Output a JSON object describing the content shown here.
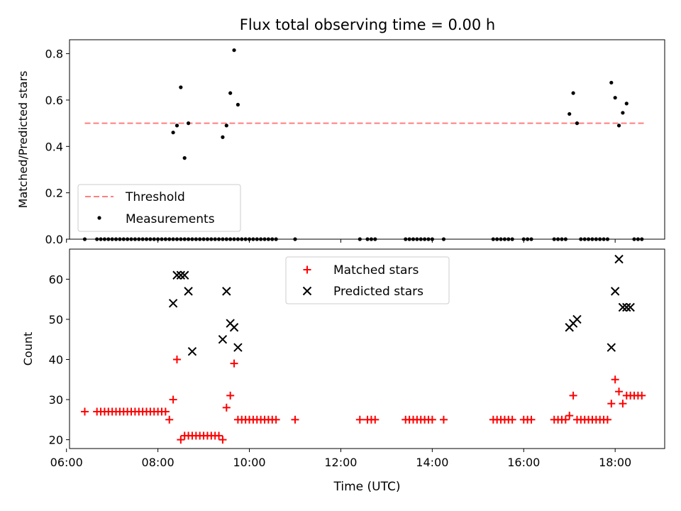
{
  "figure": {
    "title": "Flux total observing time = 0.00 h"
  },
  "colors": {
    "threshold": "#ff7f7f",
    "measurements": "#000000",
    "matched": "#ff0000",
    "predicted": "#000000"
  },
  "chart_data": [
    {
      "type": "scatter",
      "ylabel": "Matched/Predicted stars",
      "xlabel": "",
      "ylim": [
        0,
        0.86
      ],
      "xlim": [
        "06:04",
        "19:05"
      ],
      "yticks": [
        "0.0",
        "0.2",
        "0.4",
        "0.6",
        "0.8"
      ],
      "ytick_values": [
        0,
        0.2,
        0.4,
        0.6,
        0.8
      ],
      "legend": {
        "position": "lower-left",
        "entries": [
          "Threshold",
          "Measurements"
        ]
      },
      "threshold": {
        "name": "Threshold",
        "y": 0.5,
        "x": [
          "06:24",
          "18:38"
        ]
      },
      "measurements": {
        "name": "Measurements",
        "x": [
          "06:24",
          "06:40",
          "06:45",
          "06:50",
          "06:55",
          "07:00",
          "07:05",
          "07:10",
          "07:15",
          "07:20",
          "07:25",
          "07:30",
          "07:35",
          "07:40",
          "07:45",
          "07:50",
          "07:55",
          "08:00",
          "08:05",
          "08:10",
          "08:15",
          "08:20",
          "08:25",
          "08:30",
          "08:35",
          "08:40",
          "08:45",
          "08:50",
          "08:55",
          "09:00",
          "09:05",
          "09:10",
          "09:15",
          "09:20",
          "09:25",
          "09:30",
          "09:35",
          "09:40",
          "09:45",
          "09:50",
          "09:55",
          "10:00",
          "10:05",
          "10:10",
          "10:15",
          "10:20",
          "10:25",
          "10:30",
          "10:35",
          "11:00",
          "12:25",
          "12:35",
          "12:40",
          "12:45",
          "13:25",
          "13:30",
          "13:35",
          "13:40",
          "13:45",
          "13:50",
          "13:55",
          "14:00",
          "14:15",
          "15:20",
          "15:25",
          "15:30",
          "15:35",
          "15:40",
          "15:45",
          "16:00",
          "16:05",
          "16:10",
          "16:40",
          "16:45",
          "16:50",
          "16:55",
          "17:15",
          "17:20",
          "17:25",
          "17:30",
          "17:35",
          "17:40",
          "17:45",
          "17:50",
          "18:25",
          "18:30",
          "18:35",
          "08:20",
          "08:25",
          "08:30",
          "08:35",
          "08:40",
          "09:25",
          "09:30",
          "09:35",
          "09:40",
          "09:45",
          "17:00",
          "17:05",
          "17:10",
          "17:55",
          "18:00",
          "18:05",
          "18:10",
          "18:15"
        ],
        "y": [
          0,
          0,
          0,
          0,
          0,
          0,
          0,
          0,
          0,
          0,
          0,
          0,
          0,
          0,
          0,
          0,
          0,
          0,
          0,
          0,
          0,
          0,
          0,
          0,
          0,
          0,
          0,
          0,
          0,
          0,
          0,
          0,
          0,
          0,
          0,
          0,
          0,
          0,
          0,
          0,
          0,
          0,
          0,
          0,
          0,
          0,
          0,
          0,
          0,
          0,
          0,
          0,
          0,
          0,
          0,
          0,
          0,
          0,
          0,
          0,
          0,
          0,
          0,
          0,
          0,
          0,
          0,
          0,
          0,
          0,
          0,
          0,
          0,
          0,
          0,
          0,
          0,
          0,
          0,
          0,
          0,
          0,
          0,
          0,
          0,
          0,
          0,
          0.46,
          0.49,
          0.655,
          0.35,
          0.5,
          0.44,
          0.49,
          0.63,
          0.815,
          0.58,
          0.54,
          0.63,
          0.5,
          0.675,
          0.61,
          0.49,
          0.545,
          0.585
        ]
      }
    },
    {
      "type": "scatter",
      "ylabel": "Count",
      "xlabel": "Time (UTC)",
      "ylim": [
        17.8,
        67.5
      ],
      "xlim": [
        "06:04",
        "19:05"
      ],
      "yticks": [
        "20",
        "30",
        "40",
        "50",
        "60"
      ],
      "ytick_values": [
        20,
        30,
        40,
        50,
        60
      ],
      "xticks": [
        "06:00",
        "08:00",
        "10:00",
        "12:00",
        "14:00",
        "16:00",
        "18:00"
      ],
      "legend": {
        "position": "upper-center",
        "entries": [
          "Matched stars",
          "Predicted stars"
        ]
      },
      "series": [
        {
          "name": "Matched stars",
          "marker": "plus",
          "x": [
            "06:24",
            "06:40",
            "06:45",
            "06:50",
            "06:55",
            "07:00",
            "07:05",
            "07:10",
            "07:15",
            "07:20",
            "07:25",
            "07:30",
            "07:35",
            "07:40",
            "07:45",
            "07:50",
            "07:55",
            "08:00",
            "08:05",
            "08:10",
            "08:15",
            "08:20",
            "08:25",
            "08:30",
            "08:35",
            "08:40",
            "08:45",
            "08:50",
            "08:55",
            "09:00",
            "09:05",
            "09:10",
            "09:15",
            "09:20",
            "09:25",
            "09:30",
            "09:35",
            "09:40",
            "09:45",
            "09:50",
            "09:55",
            "10:00",
            "10:05",
            "10:10",
            "10:15",
            "10:20",
            "10:25",
            "10:30",
            "10:35",
            "11:00",
            "12:25",
            "12:35",
            "12:40",
            "12:45",
            "13:25",
            "13:30",
            "13:35",
            "13:40",
            "13:45",
            "13:50",
            "13:55",
            "14:00",
            "14:15",
            "15:20",
            "15:25",
            "15:30",
            "15:35",
            "15:40",
            "15:45",
            "16:00",
            "16:05",
            "16:10",
            "16:40",
            "16:45",
            "16:50",
            "16:55",
            "17:00",
            "17:05",
            "17:10",
            "17:15",
            "17:20",
            "17:25",
            "17:30",
            "17:35",
            "17:40",
            "17:45",
            "17:50",
            "17:55",
            "18:00",
            "18:05",
            "18:10",
            "18:15",
            "18:20",
            "18:25",
            "18:30",
            "18:35"
          ],
          "y": [
            27,
            27,
            27,
            27,
            27,
            27,
            27,
            27,
            27,
            27,
            27,
            27,
            27,
            27,
            27,
            27,
            27,
            27,
            27,
            27,
            25,
            30,
            40,
            20,
            21,
            21,
            21,
            21,
            21,
            21,
            21,
            21,
            21,
            21,
            20,
            28,
            31,
            39,
            25,
            25,
            25,
            25,
            25,
            25,
            25,
            25,
            25,
            25,
            25,
            25,
            25,
            25,
            25,
            25,
            25,
            25,
            25,
            25,
            25,
            25,
            25,
            25,
            25,
            25,
            25,
            25,
            25,
            25,
            25,
            25,
            25,
            25,
            25,
            25,
            25,
            25,
            26,
            31,
            25,
            25,
            25,
            25,
            25,
            25,
            25,
            25,
            25,
            29,
            35,
            32,
            29,
            31,
            31,
            31,
            31,
            31
          ]
        },
        {
          "name": "Predicted stars",
          "marker": "x",
          "x": [
            "08:20",
            "08:25",
            "08:30",
            "08:35",
            "08:40",
            "08:45",
            "09:25",
            "09:30",
            "09:35",
            "09:40",
            "09:45",
            "17:00",
            "17:05",
            "17:10",
            "17:55",
            "18:00",
            "18:05",
            "18:10",
            "18:15",
            "18:20"
          ],
          "y": [
            54,
            61,
            61,
            61,
            57,
            42,
            45,
            57,
            49,
            48,
            43,
            48,
            49,
            50,
            43,
            57,
            65,
            53,
            53,
            53
          ]
        }
      ]
    }
  ]
}
